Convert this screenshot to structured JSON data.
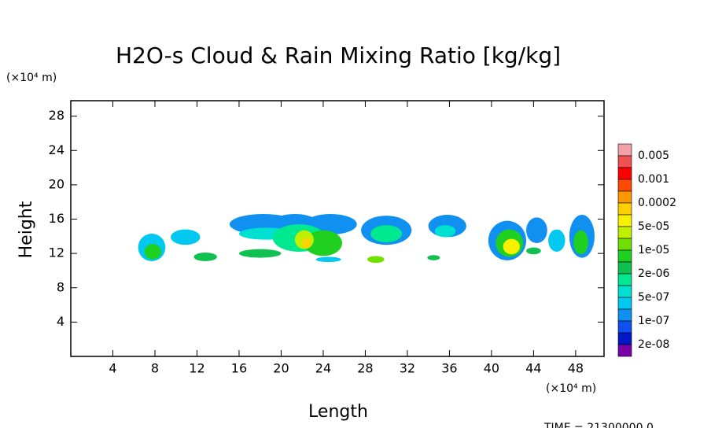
{
  "chart_data": {
    "type": "contour",
    "title": "H2O-s Cloud & Rain Mixing Ratio [kg/kg]",
    "x_label": "Length",
    "y_label": "Height",
    "x_unit": "(×10⁴ m)",
    "y_unit": "(×10⁴ m)",
    "footer": "TIME = 21300000.0",
    "xlim": [
      0,
      50.7
    ],
    "ylim": [
      0,
      29.8
    ],
    "xticks": [
      4,
      8,
      12,
      16,
      20,
      24,
      28,
      32,
      36,
      40,
      44,
      48
    ],
    "yticks": [
      4,
      8,
      12,
      16,
      20,
      24,
      28
    ],
    "colorbar": {
      "colors": [
        "#f4a0a8",
        "#f05050",
        "#ff0000",
        "#ff4800",
        "#ff9800",
        "#ffd000",
        "#f8f000",
        "#c0f000",
        "#70e000",
        "#20d020",
        "#10c050",
        "#00e890",
        "#00e0d0",
        "#00c8f0",
        "#1090f0",
        "#1050f0",
        "#0018c8",
        "#7a00a8"
      ],
      "labels": [
        0.005,
        0.001,
        0.0002,
        {
          "value": 5e-05,
          "label": "5e-05"
        },
        {
          "value": 1e-05,
          "label": "1e-05"
        },
        {
          "value": 2e-06,
          "label": "2e-06"
        },
        {
          "value": 5e-07,
          "label": "5e-07"
        },
        {
          "value": 1e-07,
          "label": "1e-07"
        },
        {
          "value": 2e-08,
          "label": "2e-08"
        }
      ]
    },
    "cells": [
      {
        "x": 7.7,
        "y": 12.7,
        "rx": 1.3,
        "ry": 1.6,
        "color": "#00c8f0"
      },
      {
        "x": 7.8,
        "y": 12.2,
        "rx": 0.8,
        "ry": 0.9,
        "color": "#20d020"
      },
      {
        "x": 10.9,
        "y": 13.9,
        "rx": 1.4,
        "ry": 0.9,
        "color": "#00c8f0"
      },
      {
        "x": 12.8,
        "y": 11.6,
        "rx": 1.1,
        "ry": 0.5,
        "color": "#10c050"
      },
      {
        "x": 18.3,
        "y": 15.4,
        "rx": 3.2,
        "ry": 1.2,
        "color": "#1090f0"
      },
      {
        "x": 21.3,
        "y": 15.5,
        "rx": 2.2,
        "ry": 1.1,
        "color": "#1090f0"
      },
      {
        "x": 24.7,
        "y": 15.4,
        "rx": 2.5,
        "ry": 1.2,
        "color": "#1090f0"
      },
      {
        "x": 18.6,
        "y": 14.3,
        "rx": 2.6,
        "ry": 0.7,
        "color": "#00e0d0"
      },
      {
        "x": 21.7,
        "y": 13.8,
        "rx": 2.5,
        "ry": 1.6,
        "color": "#00e890"
      },
      {
        "x": 24.0,
        "y": 13.2,
        "rx": 1.8,
        "ry": 1.5,
        "color": "#20d020"
      },
      {
        "x": 22.2,
        "y": 13.6,
        "rx": 0.9,
        "ry": 1.1,
        "color": "#c0f000"
      },
      {
        "x": 22.4,
        "y": 13.2,
        "rx": 0.4,
        "ry": 0.6,
        "color": "#ffd000"
      },
      {
        "x": 18.0,
        "y": 12.0,
        "rx": 2.0,
        "ry": 0.5,
        "color": "#10c050"
      },
      {
        "x": 24.5,
        "y": 11.3,
        "rx": 1.2,
        "ry": 0.3,
        "color": "#00c8f0"
      },
      {
        "x": 30.0,
        "y": 14.7,
        "rx": 2.4,
        "ry": 1.7,
        "color": "#1090f0"
      },
      {
        "x": 30.0,
        "y": 14.3,
        "rx": 1.5,
        "ry": 1.0,
        "color": "#00e890"
      },
      {
        "x": 29.0,
        "y": 11.3,
        "rx": 0.8,
        "ry": 0.4,
        "color": "#70e000"
      },
      {
        "x": 35.8,
        "y": 15.2,
        "rx": 1.8,
        "ry": 1.3,
        "color": "#1090f0"
      },
      {
        "x": 35.6,
        "y": 14.6,
        "rx": 1.0,
        "ry": 0.7,
        "color": "#00e0d0"
      },
      {
        "x": 34.5,
        "y": 11.5,
        "rx": 0.6,
        "ry": 0.3,
        "color": "#10c050"
      },
      {
        "x": 41.5,
        "y": 13.5,
        "rx": 1.8,
        "ry": 2.3,
        "color": "#1090f0"
      },
      {
        "x": 41.7,
        "y": 13.2,
        "rx": 1.3,
        "ry": 1.6,
        "color": "#20d020"
      },
      {
        "x": 41.9,
        "y": 12.8,
        "rx": 0.8,
        "ry": 0.9,
        "color": "#f8f000"
      },
      {
        "x": 44.3,
        "y": 14.7,
        "rx": 1.0,
        "ry": 1.5,
        "color": "#1090f0"
      },
      {
        "x": 44.0,
        "y": 12.3,
        "rx": 0.7,
        "ry": 0.4,
        "color": "#10c050"
      },
      {
        "x": 46.2,
        "y": 13.5,
        "rx": 0.8,
        "ry": 1.3,
        "color": "#00c8f0"
      },
      {
        "x": 48.6,
        "y": 14.0,
        "rx": 1.2,
        "ry": 2.5,
        "color": "#1090f0"
      },
      {
        "x": 48.5,
        "y": 13.3,
        "rx": 0.7,
        "ry": 1.4,
        "color": "#20d020"
      }
    ]
  }
}
